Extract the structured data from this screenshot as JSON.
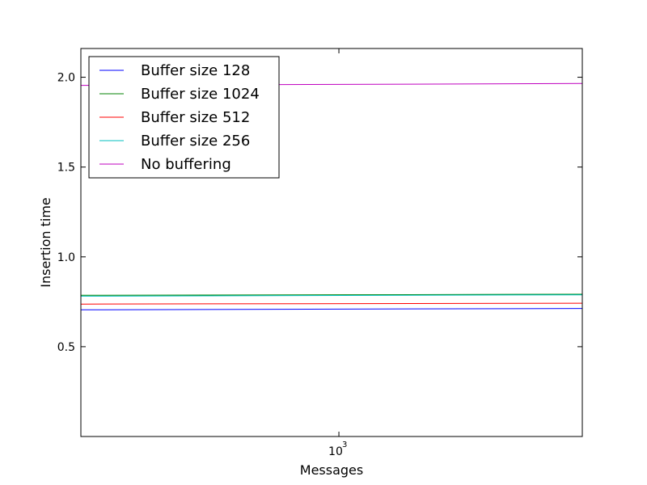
{
  "chart_data": {
    "type": "line",
    "xlabel": "Messages",
    "ylabel": "Insertion time",
    "xscale": "log",
    "xlim": [
      700,
      1400
    ],
    "ylim": [
      0.0,
      2.16
    ],
    "x": [
      700,
      1400
    ],
    "xticks": [
      {
        "value": 1000,
        "label_base": "10",
        "label_exp": "3"
      }
    ],
    "yticks": [
      0.5,
      1.0,
      1.5,
      2.0
    ],
    "ytick_labels": [
      "0.5",
      "1.0",
      "1.5",
      "2.0"
    ],
    "grid": false,
    "legend_position": "top-left",
    "series": [
      {
        "name": "Buffer size 128",
        "color": "#0000ff",
        "values": [
          0.705,
          0.713
        ]
      },
      {
        "name": "Buffer size 1024",
        "color": "#008000",
        "values": [
          0.786,
          0.792
        ]
      },
      {
        "name": "Buffer size 512",
        "color": "#ff0000",
        "values": [
          0.737,
          0.742
        ]
      },
      {
        "name": "Buffer size 256",
        "color": "#00bfbf",
        "values": [
          0.781,
          0.789
        ]
      },
      {
        "name": "No buffering",
        "color": "#bf00bf",
        "values": [
          1.955,
          1.965
        ]
      }
    ]
  }
}
